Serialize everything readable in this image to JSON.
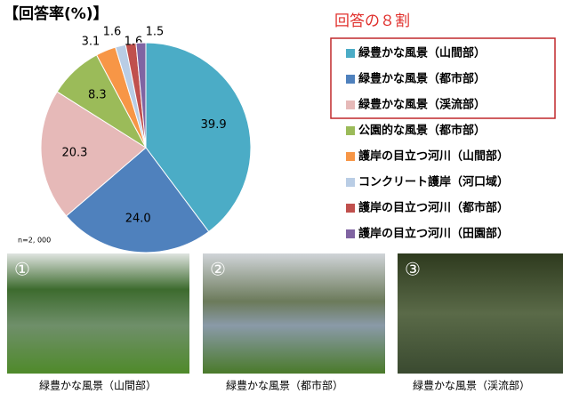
{
  "chart_data": {
    "type": "pie",
    "title": "【回答率(%)】",
    "note": "n=2, 000",
    "highlight_title": "回答の８割",
    "categories": [
      "緑豊かな風景（山間部）",
      "緑豊かな風景（都市部）",
      "緑豊かな風景（渓流部）",
      "公園的な風景（都市部）",
      "護岸の目立つ河川（山間部）",
      "コンクリート護岸（河口域）",
      "護岸の目立つ河川（都市部）",
      "護岸の目立つ河川（田園部）"
    ],
    "values": [
      39.9,
      24.0,
      20.3,
      8.3,
      3.1,
      1.6,
      1.6,
      1.5
    ],
    "value_labels": [
      "39.9",
      "24.0",
      "20.3",
      "8.3",
      "3.1",
      "1.6",
      "1.6",
      "1.5"
    ],
    "colors": [
      "#4bacc6",
      "#4f81bd",
      "#e6b9b8",
      "#9bbb59",
      "#f79646",
      "#b9cde5",
      "#c0504d",
      "#8064a2"
    ]
  },
  "photos": [
    {
      "number": "①",
      "caption": "緑豊かな風景（山間部）"
    },
    {
      "number": "②",
      "caption": "緑豊かな風景（都市部）"
    },
    {
      "number": "③",
      "caption": "緑豊かな風景（渓流部）"
    }
  ]
}
